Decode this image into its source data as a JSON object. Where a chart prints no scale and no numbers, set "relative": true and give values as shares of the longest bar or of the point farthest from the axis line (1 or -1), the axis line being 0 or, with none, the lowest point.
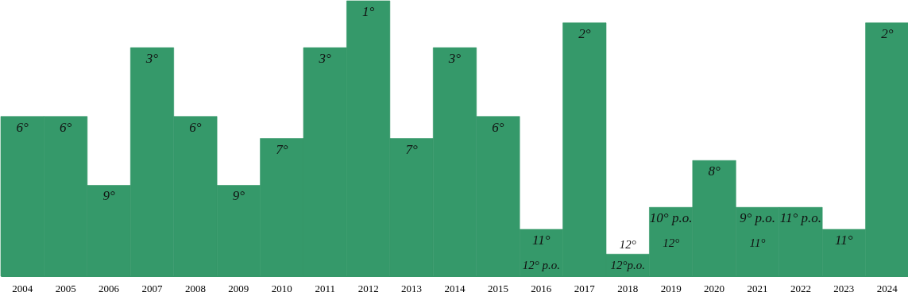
{
  "chart_data": {
    "type": "bar",
    "relative": true,
    "color": "#35996a",
    "categories": [
      "2004",
      "2005",
      "2006",
      "2007",
      "2008",
      "2009",
      "2010",
      "2011",
      "2012",
      "2013",
      "2014",
      "2015",
      "2016",
      "2017",
      "2018",
      "2019",
      "2020",
      "2021",
      "2022",
      "2023",
      "2024"
    ],
    "values": [
      0.58,
      0.58,
      0.33,
      0.83,
      0.58,
      0.33,
      0.5,
      0.83,
      1,
      0.5,
      0.83,
      0.58,
      0.17,
      0.92,
      0.08,
      0.25,
      0.42,
      0.25,
      0.25,
      0.17,
      0.92
    ],
    "annotations": [
      {
        "text": "6°",
        "x": "2004",
        "y": 0.58
      },
      {
        "text": "6°",
        "x": "2005",
        "y": 0.58
      },
      {
        "text": "9°",
        "x": "2006",
        "y": 0.33
      },
      {
        "text": "3°",
        "x": "2007",
        "y": 0.83
      },
      {
        "text": "6°",
        "x": "2008",
        "y": 0.58
      },
      {
        "text": "9°",
        "x": "2009",
        "y": 0.33
      },
      {
        "text": "7°",
        "x": "2010",
        "y": 0.5
      },
      {
        "text": "3°",
        "x": "2011",
        "y": 0.83
      },
      {
        "text": "1°",
        "x": "2012",
        "y": 1
      },
      {
        "text": "7°",
        "x": "2013",
        "y": 0.5
      },
      {
        "text": "3°",
        "x": "2014",
        "y": 0.83
      },
      {
        "text": "6°",
        "x": "2015",
        "y": 0.58
      },
      {
        "text": "11°",
        "x": "2016",
        "y": 0.17
      },
      {
        "text": "12° p.o.",
        "x": "2016",
        "y": 0.17
      },
      {
        "text": "2°",
        "x": "2017",
        "y": 0.92
      },
      {
        "text": "12°",
        "x": "2018",
        "y": 0.08
      },
      {
        "text": "12°p.o.",
        "x": "2018",
        "y": 0.08
      },
      {
        "text": "10° p.o.",
        "x": "2019",
        "y": 0.25
      },
      {
        "text": "12°",
        "x": "2019",
        "y": 0.25
      },
      {
        "text": "8°",
        "x": "2020",
        "y": 0.42
      },
      {
        "text": "9° p.o.",
        "x": "2021",
        "y": 0.25
      },
      {
        "text": "11°",
        "x": "2021",
        "y": 0.25
      },
      {
        "text": "11° p.o.",
        "x": "2022",
        "y": 0.25
      },
      {
        "text": "11°",
        "x": "2023",
        "y": 0.17
      },
      {
        "text": "2°",
        "x": "2024",
        "y": 0.92
      }
    ]
  }
}
